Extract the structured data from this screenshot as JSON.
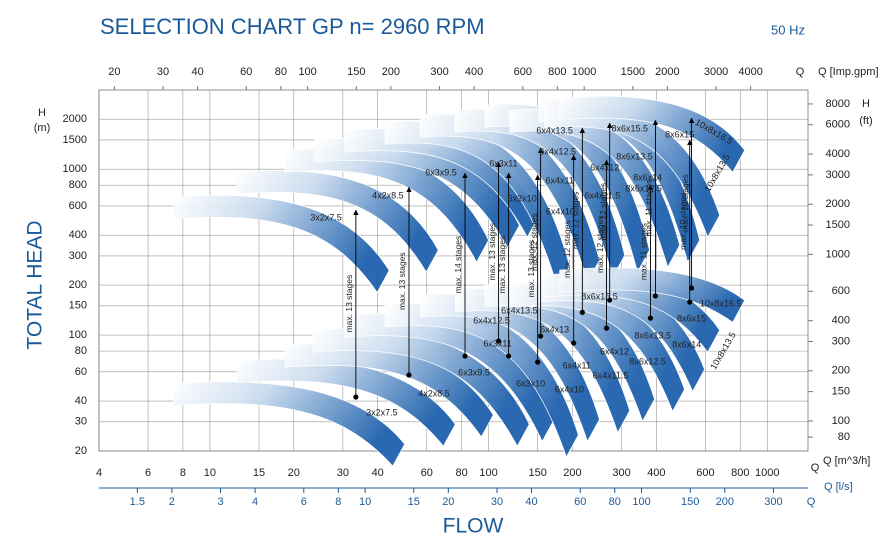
{
  "chart_data": {
    "type": "selection",
    "title": "SELECTION CHART GP n= 2960 RPM",
    "subtitle": "50 Hz",
    "y_title": "TOTAL HEAD",
    "x_title": "FLOW",
    "log_x": true,
    "log_y": true,
    "grid": true,
    "band_color": "#1f62ad",
    "text_color": "#1b5a99",
    "xlabel": "Q [m^3/h]",
    "x_end_label": "Q",
    "xlim": [
      4,
      1400
    ],
    "xticks": [
      4,
      6,
      8,
      10,
      15,
      20,
      30,
      40,
      60,
      80,
      100,
      150,
      200,
      300,
      400,
      600,
      800,
      1000
    ],
    "x2label": "Q [Imp.gpm]",
    "x2_end_label": "Q",
    "x2lim": [
      17.6,
      6450
    ],
    "x2ticks": [
      20,
      30,
      40,
      60,
      80,
      100,
      150,
      200,
      300,
      400,
      600,
      800,
      1000,
      1500,
      2000,
      3000,
      4000
    ],
    "x3label": "Q [l/s]",
    "x3_end_label": "Q",
    "x3lim": [
      1.09,
      400
    ],
    "x3ticks": [
      1.5,
      2,
      3,
      4,
      6,
      8,
      10,
      15,
      20,
      30,
      40,
      60,
      80,
      100,
      150,
      200,
      300
    ],
    "ylabel": "H",
    "yunit": "(m)",
    "ylim": [
      20,
      3000
    ],
    "yticks": [
      20,
      30,
      40,
      60,
      80,
      100,
      150,
      200,
      300,
      400,
      600,
      800,
      1000,
      1500,
      2000
    ],
    "y2label": "H",
    "y2unit": "(ft)",
    "y2lim": [
      66,
      9700
    ],
    "y2ticks": [
      80,
      100,
      150,
      200,
      300,
      400,
      600,
      1000,
      1500,
      2000,
      3000,
      4000,
      6000,
      8000
    ],
    "bands": [
      {
        "q": [
          7.4,
          44
        ],
        "h": [
          680,
          245
        ]
      },
      {
        "q": [
          12.5,
          66
        ],
        "h": [
          960,
          325
        ]
      },
      {
        "q": [
          18.6,
          100
        ],
        "h": [
          1300,
          373
        ]
      },
      {
        "q": [
          23.8,
          129
        ],
        "h": [
          1500,
          459
        ]
      },
      {
        "q": [
          30.5,
          152
        ],
        "h": [
          1717,
          528
        ]
      },
      {
        "q": [
          42.5,
          195
        ],
        "h": [
          1918,
          264
        ]
      },
      {
        "q": [
          56.8,
          250
        ],
        "h": [
          2113,
          283
        ]
      },
      {
        "q": [
          75.8,
          308
        ],
        "h": [
          2265,
          303
        ]
      },
      {
        "q": [
          97,
          378
        ],
        "h": [
          2428,
          325
        ]
      },
      {
        "q": [
          119,
          485
        ],
        "h": [
          2265,
          348
        ]
      },
      {
        "q": [
          152,
          572
        ],
        "h": [
          2603,
          373
        ]
      },
      {
        "q": [
          159,
          675
        ],
        "h": [
          2393,
          528
        ]
      },
      {
        "q": [
          180,
          830
        ],
        "h": [
          2680,
          1300
        ]
      },
      {
        "q": [
          7.4,
          50
        ],
        "h": [
          51,
          22
        ]
      },
      {
        "q": [
          12.5,
          76
        ],
        "h": [
          70,
          29
        ]
      },
      {
        "q": [
          18.6,
          104
        ],
        "h": [
          87,
          33
        ]
      },
      {
        "q": [
          23.4,
          140
        ],
        "h": [
          107,
          29
        ]
      },
      {
        "q": [
          30.5,
          172
        ],
        "h": [
          132,
          31
        ]
      },
      {
        "q": [
          42.5,
          210
        ],
        "h": [
          152,
          25
        ]
      },
      {
        "q": [
          57,
          250
        ],
        "h": [
          174,
          31
        ]
      },
      {
        "q": [
          76,
          321
        ],
        "h": [
          187,
          35
        ]
      },
      {
        "q": [
          97,
          394
        ],
        "h": [
          200,
          41
        ]
      },
      {
        "q": [
          119,
          505
        ],
        "h": [
          200,
          47
        ]
      },
      {
        "q": [
          152,
          596
        ],
        "h": [
          214,
          62
        ]
      },
      {
        "q": [
          159,
          675
        ],
        "h": [
          230,
          107
        ]
      },
      {
        "q": [
          180,
          830
        ],
        "h": [
          246,
          162
        ]
      }
    ],
    "labels": [
      {
        "text": "3x2x7.5",
        "q": 41.4,
        "h": 33.9
      },
      {
        "text": "4x2x8.5",
        "q": 63.7,
        "h": 44.1
      },
      {
        "text": "6x3x9.5",
        "q": 88.7,
        "h": 59
      },
      {
        "text": "6x3x10",
        "q": 141.5,
        "h": 50.7
      },
      {
        "text": "6x3x11",
        "q": 107.7,
        "h": 88.3
      },
      {
        "text": "6x4x10",
        "q": 195,
        "h": 46.6
      },
      {
        "text": "6x4x11",
        "q": 207,
        "h": 65
      },
      {
        "text": "6x4x11.5",
        "q": 274,
        "h": 56.6
      },
      {
        "text": "6x4x12",
        "q": 283,
        "h": 78.9
      },
      {
        "text": "6x4x12.5",
        "q": 102.5,
        "h": 121
      },
      {
        "text": "6x4x13",
        "q": 172.6,
        "h": 107
      },
      {
        "text": "6x4x13.5",
        "q": 129,
        "h": 139
      },
      {
        "text": "8x6x12.5",
        "q": 372,
        "h": 68.7
      },
      {
        "text": "8x6x13.5",
        "q": 388,
        "h": 98.6
      },
      {
        "text": "8x6x14",
        "q": 514,
        "h": 87
      },
      {
        "text": "8x6x15",
        "q": 535,
        "h": 125
      },
      {
        "text": "8x6x15.5",
        "q": 250,
        "h": 169.5
      },
      {
        "text": "10x8x16.5",
        "q": 680,
        "h": 154
      },
      {
        "text": "10x8x13.5",
        "q": 697,
        "h": 80,
        "angle": -60
      },
      {
        "text": "3x2x7.5",
        "q": 26.1,
        "h": 507
      },
      {
        "text": "4x2x8.5",
        "q": 43.5,
        "h": 687
      },
      {
        "text": "6x3x9.5",
        "q": 67.5,
        "h": 946
      },
      {
        "text": "6x3x10",
        "q": 132,
        "h": 659
      },
      {
        "text": "6x3x11",
        "q": 113,
        "h": 1071
      },
      {
        "text": "6x4x10",
        "q": 181,
        "h": 551
      },
      {
        "text": "6x4x11",
        "q": 180,
        "h": 847
      },
      {
        "text": "6x4x11.5",
        "q": 256,
        "h": 687
      },
      {
        "text": "6x4x12",
        "q": 261,
        "h": 1014
      },
      {
        "text": "6x4x12.5",
        "q": 177,
        "h": 1265
      },
      {
        "text": "6x4x13.5",
        "q": 172.6,
        "h": 1694
      },
      {
        "text": "8x6x12.5",
        "q": 360,
        "h": 757
      },
      {
        "text": "8x6x13.5",
        "q": 334,
        "h": 1181
      },
      {
        "text": "8x6x14",
        "q": 372,
        "h": 882
      },
      {
        "text": "8x6x15",
        "q": 485,
        "h": 1603
      },
      {
        "text": "8x6x15.5",
        "q": 321,
        "h": 1741
      },
      {
        "text": "10x8x16.5",
        "q": 642,
        "h": 1670,
        "angle": 30
      },
      {
        "text": "10x8x13.5",
        "q": 664,
        "h": 946,
        "angle": -60
      }
    ],
    "arrows": [
      {
        "text": "max. 13 stages",
        "q": 33.4,
        "h": [
          42.3,
          566
        ]
      },
      {
        "text": "max. 13 stages",
        "q": 51.8,
        "h": [
          57.4,
          778
        ]
      },
      {
        "text": "max. 14 stages",
        "q": 82.3,
        "h": [
          74.7,
          946
        ]
      },
      {
        "text": "max. 13 stages",
        "q": 108.6,
        "h": [
          92,
          1101
        ]
      },
      {
        "text": "max. 13 stages",
        "q": 118,
        "h": [
          74.7,
          946
        ]
      },
      {
        "text": "max. 13 stages",
        "q": 150,
        "h": [
          68.7,
          920
        ]
      },
      {
        "text": "max. 12 stages",
        "q": 153.7,
        "h": [
          98.6,
          1337
        ]
      },
      {
        "text": "max. 12 stages",
        "q": 202,
        "h": [
          89.5,
          1213
        ]
      },
      {
        "text": "max. 12 stages",
        "q": 217,
        "h": [
          137,
          1766
        ]
      },
      {
        "text": "max. 12 stages",
        "q": 265,
        "h": [
          110,
          1132
        ]
      },
      {
        "text": "max. 12 stages",
        "q": 272,
        "h": [
          162.5,
          1892
        ]
      },
      {
        "text": "max. 11 stages",
        "q": 381,
        "h": [
          126.5,
          800
        ]
      },
      {
        "text": "max. 11 stages",
        "q": 397,
        "h": [
          172,
          1972
        ]
      },
      {
        "text": "max. 10 stages",
        "q": 527,
        "h": [
          158,
          1494
        ]
      },
      {
        "text": "max. 10 stages",
        "q": 535,
        "h": [
          192,
          2028
        ]
      }
    ]
  }
}
